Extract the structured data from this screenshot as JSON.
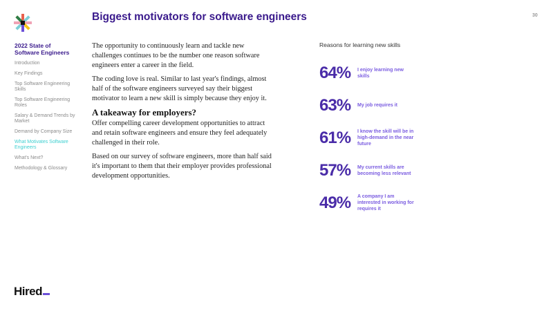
{
  "sidebar": {
    "title": "2022 State of Software Engineers",
    "items": [
      {
        "label": "Introduction"
      },
      {
        "label": "Key Findings"
      },
      {
        "label": "Top Software Engineering Skills"
      },
      {
        "label": "Top Software Engineering Roles"
      },
      {
        "label": "Salary & Demand Trends by Market"
      },
      {
        "label": "Demand by Company Size"
      },
      {
        "label": "What Motivates Software Engineers"
      },
      {
        "label": "What's Next?"
      },
      {
        "label": "Methodology & Glossary"
      }
    ],
    "active_index": 6
  },
  "brand": "Hired",
  "header": {
    "title": "Biggest motivators for software engineers",
    "page_number": "30"
  },
  "body": {
    "p1": "The opportunity to continuously learn and tackle new challenges continues to be the number one reason software engineers enter a career in the field.",
    "p2": "The coding love is real. Similar to last year's findings, almost half of the software engineers surveyed say their biggest motivator to learn a new skill is simply because they enjoy it.",
    "h2": "A takeaway for employers?",
    "p3": "Offer compelling career development opportunities to attract and retain software engineers and ensure they feel adequately challenged in their role.",
    "p4": "Based on our survey of software engineers, more than half said it's important to them that their employer provides professional development opportunities."
  },
  "stats": {
    "heading": "Reasons for learning new skills",
    "items": [
      {
        "pct": "64%",
        "label": "I enjoy learning new skills"
      },
      {
        "pct": "63%",
        "label": "My job requires it"
      },
      {
        "pct": "61%",
        "label": "I know the skill will be in high-demand in the near future"
      },
      {
        "pct": "57%",
        "label": "My current skills are becoming less relevant"
      },
      {
        "pct": "49%",
        "label": "A company I am interested in working for requires it"
      }
    ]
  },
  "colors": {
    "accent": "#3a1a8c",
    "active": "#3ccfd0",
    "label": "#7a5ce0"
  }
}
